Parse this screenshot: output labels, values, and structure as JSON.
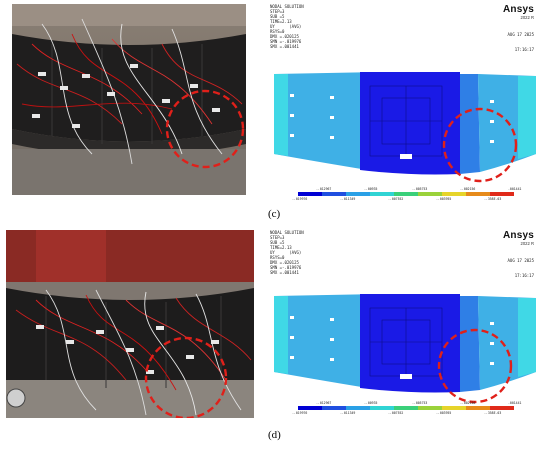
{
  "panels": [
    {
      "id": "c",
      "caption": "(c)",
      "photo_icon": "experimental-photo",
      "fea": {
        "brand": "Ansys",
        "version": "2022 R",
        "meta_lines": [
          "NODAL SOLUTION",
          "STEP=3",
          "SUB =5",
          "TIME=2.13",
          "UY      (AVG)",
          "RSYS=0",
          "DMX =.020125",
          "SMN =-.019976",
          "SMX =.001441"
        ],
        "date": "AUG 17 2025",
        "time": "17:16:17",
        "legend_values": [
          "-.019976",
          "-.012967",
          "-.011349",
          "-.00935",
          "-.007552",
          "-.005753",
          "-.003955",
          "-.002156",
          "-.358E-03",
          ".001441"
        ]
      }
    },
    {
      "id": "d",
      "caption": "(d)",
      "photo_icon": "experimental-photo",
      "fea": {
        "brand": "Ansys",
        "version": "2022 R",
        "meta_lines": [
          "NODAL SOLUTION",
          "STEP=3",
          "SUB =5",
          "TIME=2.13",
          "UY      (AVG)",
          "RSYS=0",
          "DMX =.020125",
          "SMN =-.019976",
          "SMX =.001441"
        ],
        "date": "AUG 17 2025",
        "time": "17:16:17",
        "legend_values": [
          "-.019976",
          "-.012967",
          "-.011349",
          "-.00935",
          "-.007552",
          "-.005753",
          "-.003955",
          "-.002156",
          "-.358E-03",
          ".001441"
        ]
      }
    }
  ],
  "colors": {
    "contour_dark": "#1a1ae6",
    "contour_mid": "#2f7fe6",
    "contour_light": "#3fb0e6",
    "contour_cyan": "#40d8e6",
    "highlight": "#e0201a"
  }
}
